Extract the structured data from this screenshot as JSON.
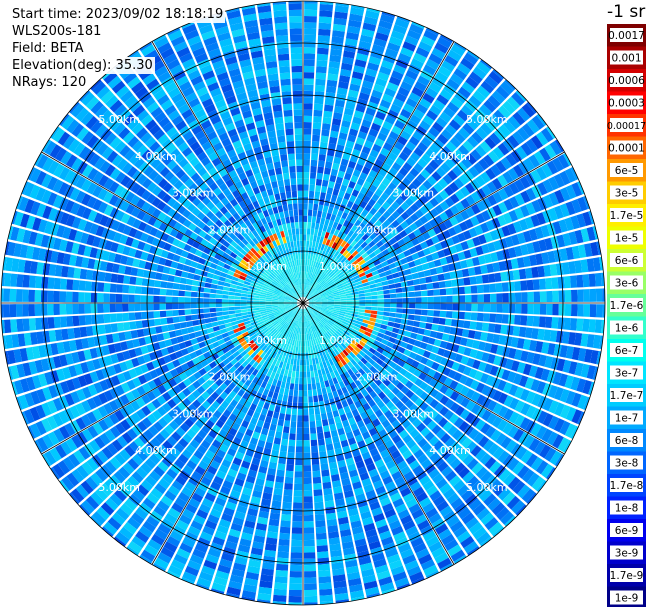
{
  "header": {
    "start_time": "Start time: 2023/09/02 18:18:19",
    "instrument": "WLS200s-181",
    "field": "Field: BETA",
    "elevation": "Elevation(deg): 35.30",
    "nrays": "NRays: 120"
  },
  "chart_data": {
    "type": "heatmap",
    "projection": "polar",
    "n_rays": 120,
    "range_max_km": 5.8,
    "range_rings_km": [
      1.0,
      2.0,
      3.0,
      4.0,
      5.0
    ],
    "range_ring_labels": [
      "1.00km",
      "2.00km",
      "3.00km",
      "4.00km",
      "5.00km"
    ],
    "colorbar": {
      "unit": "-1 sr",
      "tick_labels": [
        "0.0017",
        "0.001",
        "0.0006",
        "0.0003",
        "0.00017",
        "0.0001",
        "6e-5",
        "3e-5",
        "1.7e-5",
        "1e-5",
        "6e-6",
        "3e-6",
        "1.7e-6",
        "1e-6",
        "6e-7",
        "3e-7",
        "1.7e-7",
        "1e-7",
        "6e-8",
        "3e-8",
        "1.7e-8",
        "1e-8",
        "6e-9",
        "3e-9",
        "1.7e-9",
        "1e-9"
      ],
      "colors": [
        "#7f0000",
        "#aa0000",
        "#d40000",
        "#ff0000",
        "#ff3300",
        "#ff6600",
        "#ff9900",
        "#ffcc00",
        "#ffee00",
        "#eeff00",
        "#ccff33",
        "#99ff66",
        "#66ff99",
        "#33ffcc",
        "#00ffee",
        "#00e5ff",
        "#00ccff",
        "#00aaff",
        "#0088ff",
        "#0066ff",
        "#0044ff",
        "#0022ff",
        "#0000ee",
        "#0000cc",
        "#0000aa",
        "#000088"
      ]
    },
    "high_backscatter_ring_km": 1.3,
    "field": "BETA"
  }
}
